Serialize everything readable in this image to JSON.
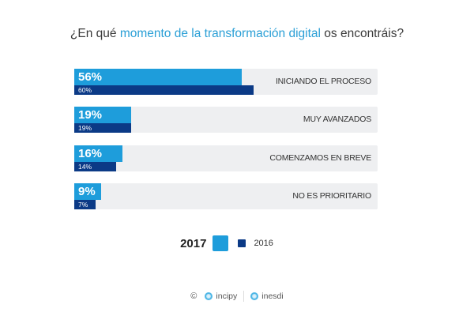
{
  "chart_data": {
    "type": "bar",
    "orientation": "horizontal",
    "title": "¿En qué momento de la transformación digital os encontráis?",
    "title_parts": {
      "before": "¿En qué ",
      "highlight": "momento de la transformación digital",
      "after": " os encontráis?"
    },
    "categories": [
      "INICIANDO EL PROCESO",
      "MUY AVANZADOS",
      "COMENZAMOS EN BREVE",
      "NO ES PRIORITARIO"
    ],
    "series": [
      {
        "name": "2017",
        "values": [
          56,
          19,
          16,
          9
        ],
        "labels": [
          "56%",
          "19%",
          "16%",
          "9%"
        ],
        "color": "#1e9ddb"
      },
      {
        "name": "2016",
        "values": [
          60,
          19,
          14,
          7
        ],
        "labels": [
          "60%",
          "19%",
          "14%",
          "7%"
        ],
        "color": "#0b3a86"
      }
    ],
    "xlim": [
      0,
      100
    ],
    "unit": "%",
    "legend": "bottom-center",
    "grid": false
  },
  "colors": {
    "highlight": "#2a9fd6",
    "track": "#eeeff1"
  },
  "footer": {
    "copyright": "©",
    "brands": [
      "incipy",
      "inesdi"
    ]
  }
}
